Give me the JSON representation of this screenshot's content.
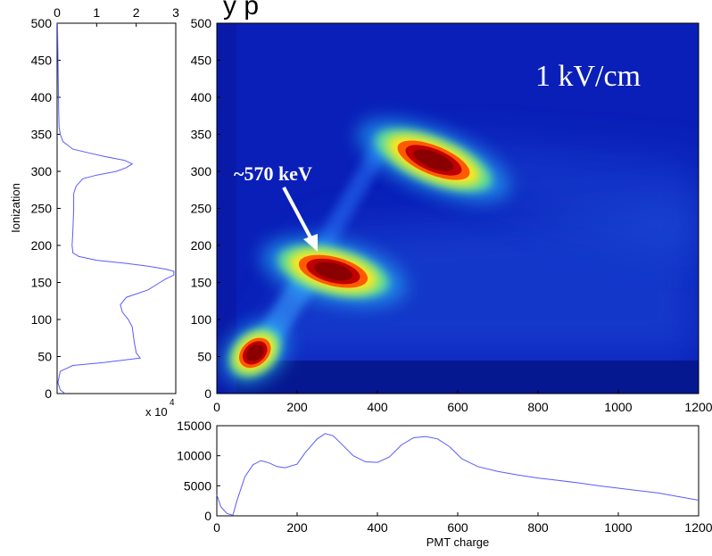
{
  "header_partial": "y                    p",
  "chart_data": [
    {
      "type": "heatmap",
      "title": "",
      "xlabel": "",
      "ylabel": "",
      "xlim": [
        0,
        1200
      ],
      "ylim": [
        0,
        500
      ],
      "xticks": [
        0,
        200,
        400,
        600,
        800,
        1000,
        1200
      ],
      "yticks": [
        0,
        50,
        100,
        150,
        200,
        250,
        300,
        350,
        400,
        450,
        500
      ],
      "colormap": "jet",
      "field_label": "1 kV/cm",
      "annotation": {
        "text": "~570 keV",
        "arrow_to": [
          265,
          190
        ]
      },
      "hotspots": [
        {
          "x": 540,
          "y": 315,
          "intensity": 1.0
        },
        {
          "x": 290,
          "y": 165,
          "intensity": 1.0
        },
        {
          "x": 95,
          "y": 55,
          "intensity": 0.95
        }
      ]
    },
    {
      "type": "line",
      "title": "",
      "xlabel": "",
      "ylabel": "Ionization",
      "orientation": "vertical",
      "xlim": [
        0,
        3
      ],
      "xticks": [
        0,
        1,
        2,
        3
      ],
      "x_multiplier": "x 10",
      "x_multiplier_exp": "4",
      "ylim": [
        0,
        500
      ],
      "yticks": [
        0,
        50,
        100,
        150,
        200,
        250,
        300,
        350,
        400,
        450,
        500
      ],
      "color": "#5a5aff",
      "series": [
        {
          "y": [
            0,
            5,
            15,
            30,
            38,
            42,
            48,
            55,
            70,
            90,
            100,
            110,
            120,
            130,
            140,
            150,
            155,
            160,
            165,
            168,
            172,
            176,
            180,
            185,
            190,
            200,
            220,
            250,
            270,
            280,
            290,
            295,
            300,
            305,
            310,
            315,
            320,
            325,
            330,
            340,
            350,
            360,
            380,
            420,
            460,
            500
          ],
          "x": [
            0.2,
            0.08,
            0.02,
            0.08,
            0.4,
            1.2,
            2.1,
            2.0,
            1.95,
            1.9,
            1.8,
            1.65,
            1.6,
            1.75,
            2.3,
            2.6,
            2.75,
            2.95,
            2.95,
            2.75,
            2.3,
            1.7,
            1.0,
            0.55,
            0.4,
            0.38,
            0.4,
            0.42,
            0.42,
            0.48,
            0.65,
            1.0,
            1.5,
            1.75,
            1.9,
            1.7,
            1.2,
            0.8,
            0.4,
            0.15,
            0.08,
            0.05,
            0.04,
            0.03,
            0.02,
            0.01
          ]
        }
      ]
    },
    {
      "type": "line",
      "title": "",
      "xlabel": "PMT charge",
      "ylabel": "",
      "xlim": [
        0,
        1200
      ],
      "xticks": [
        0,
        200,
        400,
        600,
        800,
        1000,
        1200
      ],
      "ylim": [
        0,
        15000
      ],
      "yticks": [
        0,
        5000,
        10000,
        15000
      ],
      "color": "#5a5aff",
      "series": [
        {
          "x": [
            0,
            10,
            25,
            40,
            50,
            70,
            90,
            110,
            130,
            150,
            170,
            200,
            220,
            250,
            270,
            290,
            310,
            340,
            370,
            400,
            430,
            460,
            490,
            520,
            550,
            580,
            610,
            650,
            700,
            750,
            800,
            850,
            900,
            950,
            1000,
            1050,
            1100,
            1150,
            1200
          ],
          "y": [
            3500,
            1500,
            400,
            100,
            2500,
            6500,
            8500,
            9200,
            8800,
            8200,
            8000,
            8600,
            10500,
            12800,
            13700,
            13300,
            12000,
            10000,
            9000,
            8900,
            9800,
            11800,
            13000,
            13200,
            12800,
            11500,
            9500,
            8200,
            7400,
            6800,
            6300,
            5900,
            5500,
            5000,
            4600,
            4200,
            3800,
            3200,
            2600
          ]
        }
      ]
    }
  ]
}
